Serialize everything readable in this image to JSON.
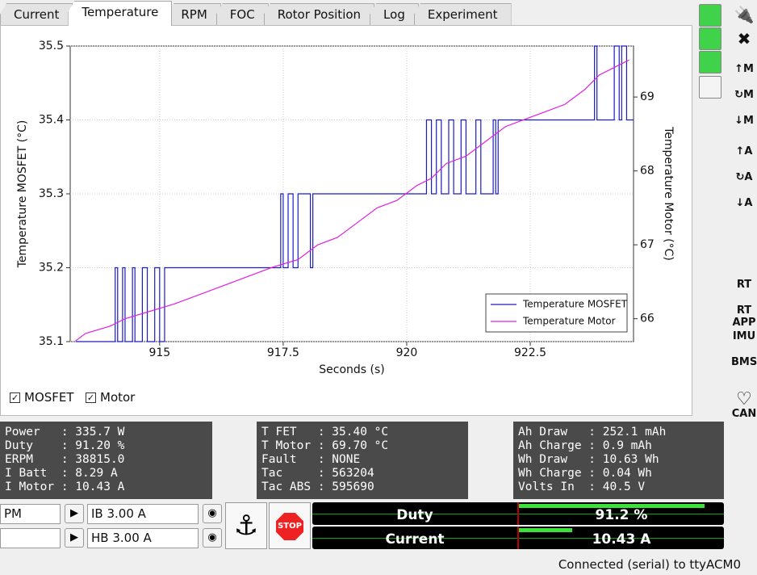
{
  "tabs": [
    "Current",
    "Temperature",
    "RPM",
    "FOC",
    "Rotor Position",
    "Log",
    "Experiment"
  ],
  "active_tab": "Temperature",
  "chart_data": {
    "type": "line",
    "xlabel": "Seconds (s)",
    "ylabel": "Temperature MOSFET (°C)",
    "y2label": "Temperature Motor (°C)",
    "xlim": [
      913.19,
      924.59
    ],
    "xticks": [
      915,
      917.5,
      920,
      922.5
    ],
    "ylim": [
      35.1,
      35.5
    ],
    "yticks": [
      35.1,
      35.2,
      35.3,
      35.4,
      35.5
    ],
    "y2lim": [
      65.69,
      69.69
    ],
    "y2ticks": [
      66,
      67,
      68,
      69
    ],
    "grid": true,
    "legend": "lower right",
    "series": [
      {
        "name": "Temperature MOSFET",
        "color": "#1c1cbf",
        "x": [
          913.3,
          914.1,
          914.1,
          914.15,
          914.15,
          914.25,
          914.25,
          914.3,
          914.3,
          914.45,
          914.45,
          914.5,
          914.5,
          914.65,
          914.65,
          914.75,
          914.75,
          914.9,
          914.9,
          915.0,
          915.0,
          915.1,
          915.1,
          917.45,
          917.45,
          917.5,
          917.5,
          917.6,
          917.6,
          917.7,
          917.7,
          917.8,
          917.8,
          918.05,
          918.05,
          918.1,
          918.1,
          920.4,
          920.4,
          920.5,
          920.5,
          920.6,
          920.6,
          920.7,
          920.7,
          920.85,
          920.85,
          920.95,
          920.95,
          921.1,
          921.1,
          921.2,
          921.2,
          921.4,
          921.4,
          921.5,
          921.5,
          921.75,
          921.75,
          921.8,
          921.8,
          921.85,
          921.85,
          923.8,
          923.8,
          923.85,
          923.85,
          924.2,
          924.2,
          924.3,
          924.3,
          924.35,
          924.35,
          924.45,
          924.45,
          924.59
        ],
        "values": [
          35.1,
          35.1,
          35.2,
          35.2,
          35.1,
          35.1,
          35.2,
          35.2,
          35.1,
          35.1,
          35.2,
          35.2,
          35.1,
          35.1,
          35.2,
          35.2,
          35.1,
          35.1,
          35.2,
          35.2,
          35.1,
          35.1,
          35.2,
          35.2,
          35.3,
          35.3,
          35.2,
          35.2,
          35.3,
          35.3,
          35.2,
          35.2,
          35.3,
          35.3,
          35.2,
          35.2,
          35.3,
          35.3,
          35.4,
          35.4,
          35.3,
          35.3,
          35.4,
          35.4,
          35.3,
          35.3,
          35.4,
          35.4,
          35.3,
          35.3,
          35.4,
          35.4,
          35.3,
          35.3,
          35.4,
          35.4,
          35.3,
          35.3,
          35.4,
          35.4,
          35.3,
          35.3,
          35.4,
          35.4,
          35.5,
          35.5,
          35.4,
          35.4,
          35.5,
          35.5,
          35.4,
          35.4,
          35.5,
          35.5,
          35.4,
          35.4
        ]
      },
      {
        "name": "Temperature Motor",
        "color": "#e020e0",
        "axis": "y2",
        "x": [
          913.3,
          913.5,
          914.0,
          914.3,
          914.8,
          915.3,
          915.7,
          916.1,
          916.5,
          916.9,
          917.3,
          917.8,
          918.2,
          918.6,
          919.0,
          919.4,
          919.8,
          920.2,
          920.5,
          920.8,
          921.2,
          921.6,
          922.0,
          922.4,
          922.8,
          923.2,
          923.6,
          923.9,
          924.2,
          924.5
        ],
        "values": [
          65.7,
          65.8,
          65.9,
          66.0,
          66.1,
          66.2,
          66.3,
          66.4,
          66.5,
          66.6,
          66.7,
          66.8,
          67.0,
          67.1,
          67.3,
          67.5,
          67.6,
          67.8,
          67.9,
          68.1,
          68.2,
          68.4,
          68.6,
          68.7,
          68.8,
          68.9,
          69.1,
          69.3,
          69.4,
          69.5
        ]
      }
    ]
  },
  "checkboxes": [
    {
      "label": "MOSFET",
      "check": "✓"
    },
    {
      "label": "Motor",
      "check": "✓"
    }
  ],
  "panels": [
    [
      "Power   : 335.7 W",
      "Duty    : 91.20 %",
      "ERPM    : 38815.0",
      "I Batt  : 8.29 A",
      "I Motor : 10.43 A"
    ],
    [
      "T FET   : 35.40 °C",
      "T Motor : 69.70 °C",
      "Fault   : NONE",
      "Tac     : 563204",
      "Tac ABS : 595690"
    ],
    [
      "Ah Draw   : 252.1 mAh",
      "Ah Charge : 0.9 mAh",
      "Wh Draw   : 10.63 Wh",
      "Wh Charge : 0.04 Wh",
      "Volts In  : 40.5 V"
    ]
  ],
  "controls": {
    "spin_left": "PM",
    "ib": "IB 3.00 A",
    "hb": "HB 3.00 A",
    "stop": "STOP"
  },
  "gauges": [
    {
      "label": "Duty",
      "value": "91.2 %"
    },
    {
      "label": "Current",
      "value": "10.43 A"
    }
  ],
  "toolbar": [
    "↑M",
    "↻M",
    "↓M",
    "↑A",
    "↻A",
    "↓A",
    "RT",
    "RT APP",
    "IMU",
    "BMS",
    "CAN"
  ],
  "status": "Connected (serial) to ttyACM0"
}
